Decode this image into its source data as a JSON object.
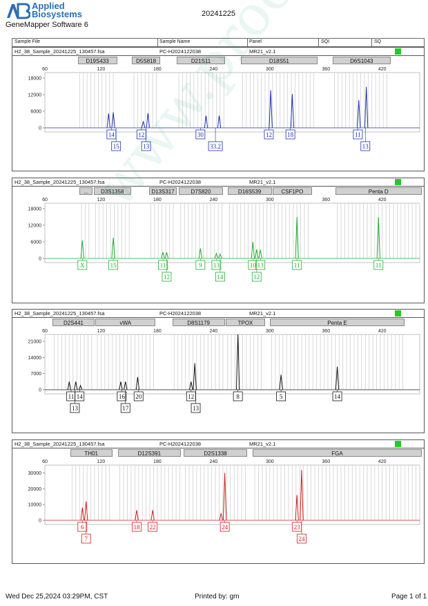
{
  "header": {
    "brand_line1": "Applied",
    "brand_line2": "Biosystems",
    "software": "GeneMapper Software 6",
    "run_id": "20241225",
    "col_sample_file": "Sample File",
    "col_sample_name": "Sample Name",
    "col_panel": "Panel",
    "col_sqi": "SQI",
    "col_sq": "SQ"
  },
  "footer": {
    "date": "Wed Dec 25,2024 03:29PM, CST",
    "printed_by": "Printed by: gm",
    "page": "Page 1 of 1"
  },
  "watermark": "www.proofcom.cn",
  "colors": {
    "blue": "#1a2fa8",
    "green": "#22aa33",
    "black": "#111111",
    "red": "#cc1f1f",
    "qc": "#22cc22"
  },
  "chart_data": [
    {
      "type": "line",
      "dye": "blue",
      "sample_file": "H2_38_Sample_20241225_130457.fsa",
      "sample_name": "PC-H2024122038",
      "panel": "MR21_v2.1",
      "xlim": [
        60,
        460
      ],
      "xticks": [
        60,
        120,
        180,
        240,
        300,
        360,
        420
      ],
      "ylim": [
        0,
        20000
      ],
      "yticks": [
        0,
        6000,
        12000,
        18000
      ],
      "loci": [
        {
          "name": "D19S433",
          "start": 95,
          "end": 137
        },
        {
          "name": "D5S818",
          "start": 153,
          "end": 183
        },
        {
          "name": "D21S11",
          "start": 201,
          "end": 252
        },
        {
          "name": "D18S51",
          "start": 269,
          "end": 351
        },
        {
          "name": "D6S1043",
          "start": 367,
          "end": 429
        }
      ],
      "peaks": [
        {
          "x": 128,
          "h": 5200
        },
        {
          "x": 133,
          "h": 5600
        },
        {
          "x": 165,
          "h": 2400
        },
        {
          "x": 170,
          "h": 5300
        },
        {
          "x": 232,
          "h": 4400
        },
        {
          "x": 246,
          "h": 4400
        },
        {
          "x": 301,
          "h": 13600
        },
        {
          "x": 324,
          "h": 12200
        },
        {
          "x": 395,
          "h": 10000
        },
        {
          "x": 403,
          "h": 14800
        }
      ],
      "alleles": [
        {
          "label": "14",
          "x": 131,
          "row": 0
        },
        {
          "label": "15",
          "x": 136,
          "row": 1
        },
        {
          "label": "12",
          "x": 163,
          "row": 0
        },
        {
          "label": "13",
          "x": 168,
          "row": 1
        },
        {
          "label": "30",
          "x": 226,
          "row": 0
        },
        {
          "label": "33.2",
          "x": 242,
          "row": 1
        },
        {
          "label": "12",
          "x": 299,
          "row": 0
        },
        {
          "label": "18",
          "x": 322,
          "row": 0
        },
        {
          "label": "11",
          "x": 394,
          "row": 0
        },
        {
          "label": "13",
          "x": 402,
          "row": 1
        }
      ]
    },
    {
      "type": "line",
      "dye": "green",
      "sample_file": "H2_38_Sample_20241225_130457.fsa",
      "sample_name": "PC-H2024122038",
      "panel": "MR21_v2.1",
      "xlim": [
        60,
        460
      ],
      "xticks": [
        60,
        120,
        180,
        240,
        300,
        360,
        420
      ],
      "ylim": [
        0,
        20000
      ],
      "yticks": [
        0,
        6000,
        12000,
        18000
      ],
      "loci": [
        {
          "name": "...",
          "start": 97,
          "end": 111
        },
        {
          "name": "D3S1358",
          "start": 112,
          "end": 152
        },
        {
          "name": "D13S317",
          "start": 171,
          "end": 201
        },
        {
          "name": "D7S820",
          "start": 203,
          "end": 250
        },
        {
          "name": "D16S539",
          "start": 255,
          "end": 302
        },
        {
          "name": "CSF1PO",
          "start": 303,
          "end": 345
        },
        {
          "name": "Penta D",
          "start": 370,
          "end": 462
        }
      ],
      "peaks": [
        {
          "x": 100,
          "h": 6500
        },
        {
          "x": 133,
          "h": 7500
        },
        {
          "x": 186,
          "h": 2300
        },
        {
          "x": 190,
          "h": 2200
        },
        {
          "x": 226,
          "h": 3600
        },
        {
          "x": 243,
          "h": 1800
        },
        {
          "x": 247,
          "h": 1600
        },
        {
          "x": 282,
          "h": 6000
        },
        {
          "x": 286,
          "h": 3300
        },
        {
          "x": 290,
          "h": 3100
        },
        {
          "x": 329,
          "h": 15000
        },
        {
          "x": 416,
          "h": 15000
        }
      ],
      "alleles": [
        {
          "label": "X",
          "x": 100,
          "row": 0
        },
        {
          "label": "15",
          "x": 133,
          "row": 0
        },
        {
          "label": "11",
          "x": 186,
          "row": 0
        },
        {
          "label": "12",
          "x": 190,
          "row": 1
        },
        {
          "label": "9",
          "x": 226,
          "row": 0
        },
        {
          "label": "13",
          "x": 243,
          "row": 0
        },
        {
          "label": "14",
          "x": 247,
          "row": 1
        },
        {
          "label": "10",
          "x": 282,
          "row": 0
        },
        {
          "label": "13",
          "x": 290,
          "row": 0
        },
        {
          "label": "12",
          "x": 286,
          "row": 1
        },
        {
          "label": "11",
          "x": 329,
          "row": 0
        },
        {
          "label": "11",
          "x": 416,
          "row": 0
        }
      ]
    },
    {
      "type": "line",
      "dye": "black",
      "sample_file": "H2_38_Sample_20241225_130457.fsa",
      "sample_name": "PC-H2024122038",
      "panel": "MR21_v2.1",
      "xlim": [
        60,
        460
      ],
      "xticks": [
        60,
        120,
        180,
        240,
        300,
        360,
        420
      ],
      "ylim": [
        0,
        24000
      ],
      "yticks": [
        0,
        7000,
        14000,
        21000
      ],
      "loci": [
        {
          "name": "D2S441",
          "start": 68,
          "end": 113
        },
        {
          "name": "vWA",
          "start": 114,
          "end": 178
        },
        {
          "name": "D8S1179",
          "start": 196,
          "end": 252
        },
        {
          "name": "TPOX",
          "start": 253,
          "end": 295
        },
        {
          "name": "Penta E",
          "start": 300,
          "end": 444
        }
      ],
      "peaks": [
        {
          "x": 86,
          "h": 3500
        },
        {
          "x": 93,
          "h": 3500
        },
        {
          "x": 98,
          "h": 1800
        },
        {
          "x": 141,
          "h": 3500
        },
        {
          "x": 146,
          "h": 3500
        },
        {
          "x": 159,
          "h": 5500
        },
        {
          "x": 216,
          "h": 3500
        },
        {
          "x": 220,
          "h": 11500
        },
        {
          "x": 266,
          "h": 24000
        },
        {
          "x": 312,
          "h": 6500
        },
        {
          "x": 372,
          "h": 10000
        }
      ],
      "alleles": [
        {
          "label": "11",
          "x": 88,
          "row": 0
        },
        {
          "label": "14",
          "x": 97,
          "row": 0
        },
        {
          "label": "13",
          "x": 92,
          "row": 1
        },
        {
          "label": "16",
          "x": 142,
          "row": 0
        },
        {
          "label": "20",
          "x": 160,
          "row": 0
        },
        {
          "label": "17",
          "x": 146,
          "row": 1
        },
        {
          "label": "12",
          "x": 216,
          "row": 0
        },
        {
          "label": "13",
          "x": 221,
          "row": 1
        },
        {
          "label": "8",
          "x": 266,
          "row": 0
        },
        {
          "label": "5",
          "x": 312,
          "row": 0
        },
        {
          "label": "14",
          "x": 372,
          "row": 0
        }
      ]
    },
    {
      "type": "line",
      "dye": "red",
      "sample_file": "H2_38_Sample_20241225_130457.fsa",
      "sample_name": "PC-H2024122038",
      "panel": "MR21_v2.1",
      "xlim": [
        60,
        460
      ],
      "xticks": [
        60,
        120,
        180,
        240,
        300,
        360,
        420
      ],
      "ylim": [
        0,
        35000
      ],
      "yticks": [
        0,
        10000,
        20000,
        30000
      ],
      "loci": [
        {
          "name": "TH01",
          "start": 87,
          "end": 132
        },
        {
          "name": "D12S391",
          "start": 138,
          "end": 205
        },
        {
          "name": "D2S1338",
          "start": 208,
          "end": 276
        },
        {
          "name": "FGA",
          "start": 282,
          "end": 462
        }
      ],
      "peaks": [
        {
          "x": 100,
          "h": 8000
        },
        {
          "x": 104,
          "h": 12000
        },
        {
          "x": 158,
          "h": 6500
        },
        {
          "x": 175,
          "h": 6500
        },
        {
          "x": 248,
          "h": 4500
        },
        {
          "x": 252,
          "h": 30000
        },
        {
          "x": 329,
          "h": 16000
        },
        {
          "x": 334,
          "h": 32000
        }
      ],
      "alleles": [
        {
          "label": "6",
          "x": 100,
          "row": 0
        },
        {
          "label": "7",
          "x": 104,
          "row": 1
        },
        {
          "label": "18",
          "x": 158,
          "row": 0
        },
        {
          "label": "22",
          "x": 175,
          "row": 0
        },
        {
          "label": "24",
          "x": 252,
          "row": 0
        },
        {
          "label": "23",
          "x": 329,
          "row": 0
        },
        {
          "label": "24",
          "x": 334,
          "row": 1
        }
      ]
    }
  ]
}
